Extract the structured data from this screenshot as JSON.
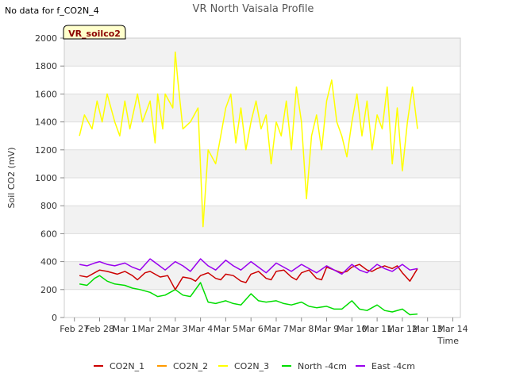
{
  "header": {
    "nodata_note": "No data for f_CO2N_4",
    "badge": "VR_soilco2"
  },
  "chart_data": {
    "type": "line",
    "title": "VR North Vaisala Profile",
    "xlabel": "Time",
    "ylabel": "Soil CO2 (mV)",
    "x_ticks": [
      "Feb 27",
      "Feb 28",
      "Mar 1",
      "Mar 2",
      "Mar 3",
      "Mar 4",
      "Mar 5",
      "Mar 6",
      "Mar 7",
      "Mar 8",
      "Mar 9",
      "Mar 10",
      "Mar 11",
      "Mar 12",
      "Mar 13",
      "Mar 14"
    ],
    "xlim": [
      -0.4,
      15.3
    ],
    "ylim": [
      0,
      2000
    ],
    "y_ticks": [
      0,
      200,
      400,
      600,
      800,
      1000,
      1200,
      1400,
      1600,
      1800,
      2000
    ],
    "grid": true,
    "legend_position": "bottom",
    "series": [
      {
        "name": "CO2N_1",
        "color": "#cc0000",
        "x": [
          0.2,
          0.5,
          0.8,
          1.0,
          1.3,
          1.7,
          2.0,
          2.3,
          2.5,
          2.8,
          3.0,
          3.4,
          3.7,
          4.0,
          4.3,
          4.6,
          4.8,
          5.0,
          5.3,
          5.6,
          5.8,
          6.0,
          6.3,
          6.6,
          6.8,
          7.0,
          7.3,
          7.6,
          7.8,
          8.0,
          8.3,
          8.6,
          8.8,
          9.0,
          9.3,
          9.6,
          9.8,
          10.0,
          10.3,
          10.6,
          10.8,
          11.0,
          11.3,
          11.6,
          11.8,
          12.0,
          12.3,
          12.6,
          12.8,
          13.0,
          13.3,
          13.6
        ],
        "y": [
          300,
          290,
          320,
          340,
          330,
          310,
          330,
          300,
          270,
          320,
          330,
          290,
          300,
          200,
          290,
          280,
          260,
          300,
          320,
          280,
          270,
          310,
          300,
          260,
          250,
          310,
          330,
          280,
          270,
          330,
          340,
          290,
          270,
          320,
          340,
          280,
          270,
          360,
          340,
          320,
          330,
          360,
          380,
          340,
          330,
          350,
          370,
          350,
          370,
          320,
          260,
          350
        ]
      },
      {
        "name": "CO2N_2",
        "color": "#ff9900",
        "x": [],
        "y": []
      },
      {
        "name": "CO2N_3",
        "color": "#ffff00",
        "x": [
          0.2,
          0.4,
          0.7,
          0.9,
          1.1,
          1.3,
          1.6,
          1.8,
          2.0,
          2.2,
          2.5,
          2.7,
          3.0,
          3.2,
          3.3,
          3.5,
          3.6,
          3.9,
          4.0,
          4.1,
          4.3,
          4.6,
          4.9,
          5.1,
          5.3,
          5.6,
          5.8,
          6.0,
          6.2,
          6.4,
          6.6,
          6.8,
          7.0,
          7.2,
          7.4,
          7.6,
          7.8,
          8.0,
          8.2,
          8.4,
          8.6,
          8.8,
          9.0,
          9.2,
          9.4,
          9.6,
          9.8,
          10.0,
          10.2,
          10.4,
          10.6,
          10.8,
          11.0,
          11.2,
          11.4,
          11.6,
          11.8,
          12.0,
          12.2,
          12.4,
          12.6,
          12.8,
          13.0,
          13.2,
          13.4,
          13.6
        ],
        "y": [
          1300,
          1450,
          1350,
          1550,
          1400,
          1600,
          1400,
          1300,
          1550,
          1350,
          1600,
          1400,
          1550,
          1250,
          1600,
          1350,
          1600,
          1500,
          1900,
          1700,
          1350,
          1400,
          1500,
          650,
          1200,
          1100,
          1300,
          1500,
          1600,
          1250,
          1500,
          1200,
          1400,
          1550,
          1350,
          1450,
          1100,
          1400,
          1300,
          1550,
          1200,
          1650,
          1400,
          850,
          1300,
          1450,
          1200,
          1550,
          1700,
          1400,
          1300,
          1150,
          1400,
          1600,
          1300,
          1550,
          1200,
          1450,
          1350,
          1650,
          1100,
          1500,
          1050,
          1400,
          1650,
          1350
        ]
      },
      {
        "name": "North -4cm",
        "color": "#00dd00",
        "x": [
          0.2,
          0.5,
          0.8,
          1.0,
          1.3,
          1.6,
          2.0,
          2.3,
          2.6,
          3.0,
          3.3,
          3.6,
          4.0,
          4.3,
          4.6,
          5.0,
          5.3,
          5.6,
          6.0,
          6.3,
          6.6,
          7.0,
          7.3,
          7.6,
          8.0,
          8.3,
          8.6,
          9.0,
          9.3,
          9.6,
          10.0,
          10.3,
          10.6,
          11.0,
          11.3,
          11.6,
          12.0,
          12.3,
          12.6,
          13.0,
          13.3,
          13.6
        ],
        "y": [
          240,
          230,
          280,
          300,
          260,
          240,
          230,
          210,
          200,
          180,
          150,
          160,
          200,
          160,
          150,
          250,
          110,
          100,
          120,
          100,
          90,
          170,
          120,
          110,
          120,
          100,
          90,
          110,
          80,
          70,
          80,
          60,
          60,
          120,
          60,
          50,
          90,
          50,
          40,
          60,
          20,
          25
        ]
      },
      {
        "name": "East -4cm",
        "color": "#9900ee",
        "x": [
          0.2,
          0.5,
          0.8,
          1.0,
          1.3,
          1.6,
          2.0,
          2.3,
          2.6,
          3.0,
          3.3,
          3.6,
          4.0,
          4.3,
          4.6,
          5.0,
          5.3,
          5.6,
          6.0,
          6.3,
          6.6,
          7.0,
          7.3,
          7.6,
          8.0,
          8.3,
          8.6,
          9.0,
          9.3,
          9.6,
          10.0,
          10.3,
          10.6,
          11.0,
          11.3,
          11.6,
          12.0,
          12.3,
          12.6,
          13.0,
          13.3,
          13.6
        ],
        "y": [
          380,
          370,
          390,
          400,
          380,
          370,
          390,
          360,
          340,
          420,
          380,
          340,
          400,
          370,
          330,
          420,
          370,
          340,
          410,
          370,
          340,
          400,
          360,
          320,
          390,
          360,
          330,
          380,
          350,
          320,
          370,
          340,
          310,
          380,
          340,
          320,
          380,
          350,
          330,
          380,
          340,
          350
        ]
      }
    ]
  }
}
